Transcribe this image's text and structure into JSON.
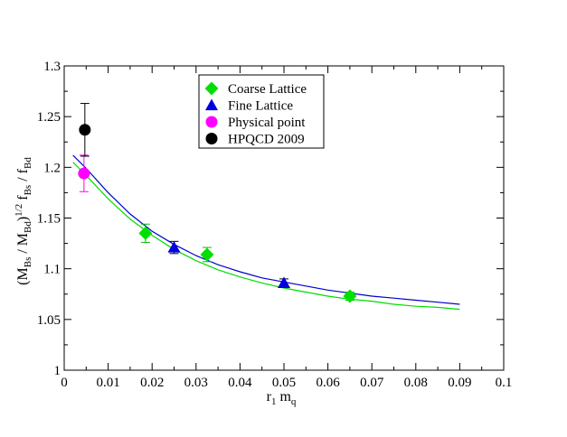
{
  "chart_data": {
    "type": "scatter",
    "title": "",
    "xlim": [
      0,
      0.1
    ],
    "ylim": [
      1,
      1.3
    ],
    "x_ticks": [
      "0",
      "0.01",
      "0.02",
      "0.03",
      "0.04",
      "0.05",
      "0.06",
      "0.07",
      "0.08",
      "0.09",
      "0.1"
    ],
    "y_ticks": [
      "1",
      "1.05",
      "1.1",
      "1.15",
      "1.2",
      "1.25",
      "1.3"
    ],
    "x_tick_values": [
      0,
      0.01,
      0.02,
      0.03,
      0.04,
      0.05,
      0.06,
      0.07,
      0.08,
      0.09,
      0.1
    ],
    "y_tick_values": [
      1,
      1.05,
      1.1,
      1.15,
      1.2,
      1.25,
      1.3
    ],
    "xlabel": {
      "main": "r",
      "sub1": "1",
      "mid": " m",
      "sub2": "q"
    },
    "ylabel": {
      "p1": "(M",
      "s1": "Bs",
      "p2": " / M",
      "s2": "Bd",
      "p3": ")",
      "sup": "1/2",
      "p4": " f",
      "s3": "Bs",
      "p5": " / f",
      "s4": "Bd"
    },
    "grid": false,
    "legend_position": "top-center",
    "series": [
      {
        "name": "Coarse Lattice",
        "marker": "diamond",
        "color": "#00e000",
        "points": [
          {
            "x": 0.0185,
            "y": 1.135,
            "err": 0.009
          },
          {
            "x": 0.0325,
            "y": 1.114,
            "err": 0.007
          },
          {
            "x": 0.065,
            "y": 1.073,
            "err": 0.004
          }
        ]
      },
      {
        "name": "Fine Lattice",
        "marker": "triangle",
        "color": "#0000e0",
        "points": [
          {
            "x": 0.025,
            "y": 1.121,
            "err": 0.006
          },
          {
            "x": 0.05,
            "y": 1.086,
            "err": 0.004
          }
        ]
      },
      {
        "name": "Physical point",
        "marker": "circle",
        "color": "#ff00ff",
        "points": [
          {
            "x": 0.0045,
            "y": 1.194,
            "err": 0.018
          }
        ]
      },
      {
        "name": "HPQCD 2009",
        "marker": "circle",
        "color": "#000000",
        "points": [
          {
            "x": 0.0047,
            "y": 1.237,
            "err": 0.026
          }
        ]
      }
    ],
    "curves": [
      {
        "color": "#0000cc",
        "x_range": [
          0.002,
          0.09
        ],
        "x": [
          0.002,
          0.005,
          0.01,
          0.015,
          0.02,
          0.025,
          0.03,
          0.035,
          0.04,
          0.045,
          0.05,
          0.055,
          0.06,
          0.065,
          0.07,
          0.075,
          0.08,
          0.085,
          0.09
        ],
        "y": [
          1.212,
          1.199,
          1.175,
          1.154,
          1.137,
          1.124,
          1.113,
          1.104,
          1.097,
          1.091,
          1.087,
          1.083,
          1.079,
          1.076,
          1.073,
          1.071,
          1.069,
          1.067,
          1.065
        ]
      },
      {
        "color": "#00dd00",
        "x_range": [
          0.002,
          0.09
        ],
        "x": [
          0.002,
          0.005,
          0.01,
          0.015,
          0.02,
          0.025,
          0.03,
          0.035,
          0.04,
          0.045,
          0.05,
          0.055,
          0.06,
          0.065,
          0.07,
          0.075,
          0.08,
          0.085,
          0.09
        ],
        "y": [
          1.205,
          1.192,
          1.169,
          1.149,
          1.133,
          1.119,
          1.108,
          1.099,
          1.092,
          1.086,
          1.081,
          1.077,
          1.073,
          1.07,
          1.068,
          1.065,
          1.063,
          1.062,
          1.06
        ]
      }
    ]
  }
}
